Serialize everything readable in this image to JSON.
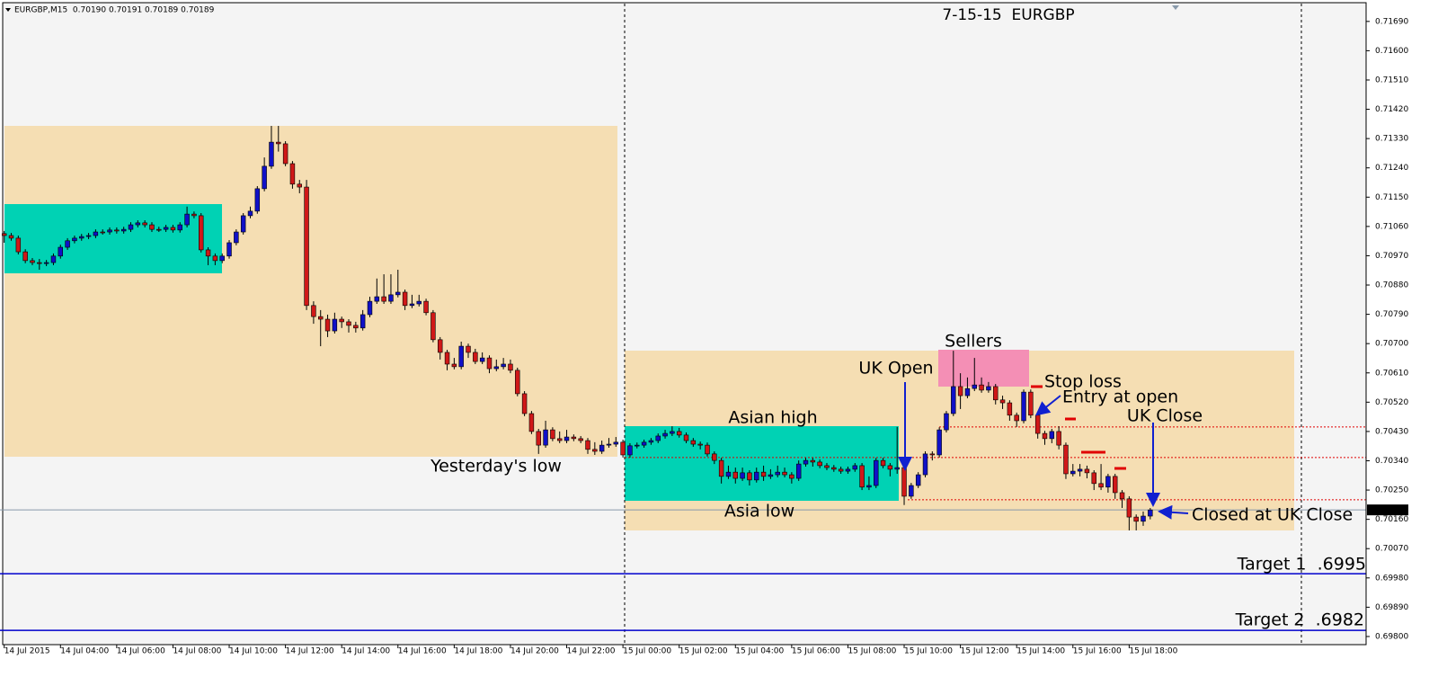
{
  "chart_data": {
    "type": "candlestick",
    "title": "7-15-15  EURGBP",
    "header": "EURGBP,M15  0.70190 0.70191 0.70189 0.70189",
    "up_color": "#1010c8",
    "down_color": "#d01818",
    "xlim": [
      -0.6,
      193.7
    ],
    "ylim": [
      0.69775,
      0.71742
    ],
    "xticks": [
      {
        "value": 0,
        "label": "14 Jul 2015"
      },
      {
        "value": 8,
        "label": "14 Jul 04:00"
      },
      {
        "value": 16,
        "label": "14 Jul 06:00"
      },
      {
        "value": 24,
        "label": "14 Jul 08:00"
      },
      {
        "value": 32,
        "label": "14 Jul 10:00"
      },
      {
        "value": 40,
        "label": "14 Jul 12:00"
      },
      {
        "value": 48,
        "label": "14 Jul 14:00"
      },
      {
        "value": 56,
        "label": "14 Jul 16:00"
      },
      {
        "value": 64,
        "label": "14 Jul 18:00"
      },
      {
        "value": 72,
        "label": "14 Jul 20:00"
      },
      {
        "value": 80,
        "label": "14 Jul 22:00"
      },
      {
        "value": 88,
        "label": "15 Jul 00:00"
      },
      {
        "value": 96,
        "label": "15 Jul 02:00"
      },
      {
        "value": 104,
        "label": "15 Jul 04:00"
      },
      {
        "value": 112,
        "label": "15 Jul 06:00"
      },
      {
        "value": 120,
        "label": "15 Jul 08:00"
      },
      {
        "value": 128,
        "label": "15 Jul 10:00"
      },
      {
        "value": 136,
        "label": "15 Jul 12:00"
      },
      {
        "value": 144,
        "label": "15 Jul 14:00"
      },
      {
        "value": 152,
        "label": "15 Jul 16:00"
      },
      {
        "value": 160,
        "label": "15 Jul 18:00"
      }
    ],
    "yticks": [
      {
        "value": 0.7169,
        "label": "0.71690"
      },
      {
        "value": 0.716,
        "label": "0.71600"
      },
      {
        "value": 0.7151,
        "label": "0.71510"
      },
      {
        "value": 0.7142,
        "label": "0.71420"
      },
      {
        "value": 0.7133,
        "label": "0.71330"
      },
      {
        "value": 0.7124,
        "label": "0.71240"
      },
      {
        "value": 0.7115,
        "label": "0.71150"
      },
      {
        "value": 0.7106,
        "label": "0.71060"
      },
      {
        "value": 0.7097,
        "label": "0.70970"
      },
      {
        "value": 0.7088,
        "label": "0.70880"
      },
      {
        "value": 0.7079,
        "label": "0.70790"
      },
      {
        "value": 0.707,
        "label": "0.70700"
      },
      {
        "value": 0.7061,
        "label": "0.70610"
      },
      {
        "value": 0.7052,
        "label": "0.70520"
      },
      {
        "value": 0.7043,
        "label": "0.70430"
      },
      {
        "value": 0.7034,
        "label": "0.70340"
      },
      {
        "value": 0.7025,
        "label": "0.70250"
      },
      {
        "value": 0.7016,
        "label": "0.70160"
      },
      {
        "value": 0.7007,
        "label": "0.70070"
      },
      {
        "value": 0.6998,
        "label": "0.69980"
      },
      {
        "value": 0.6989,
        "label": "0.69890"
      },
      {
        "value": 0.698,
        "label": "0.69800"
      }
    ],
    "last_price": {
      "value": 0.70189,
      "label": "0.70189"
    },
    "levels": [
      {
        "value": 0.69993,
        "color": "#0000cc",
        "style": "solid"
      },
      {
        "value": 0.69819,
        "color": "#0000cc",
        "style": "solid"
      },
      {
        "value": 0.70444,
        "color": "#e00000",
        "style": "dotted"
      },
      {
        "value": 0.7035,
        "color": "#e00000",
        "style": "dotted"
      },
      {
        "value": 0.7022,
        "color": "#e00000",
        "style": "dotted"
      },
      {
        "value": 0.70189,
        "color": "#8899aa",
        "style": "solid"
      }
    ],
    "annotations": [
      "Yesterday's low",
      "Asian high",
      "Asia low",
      "UK Open",
      "Sellers",
      "Stop loss",
      "Entry at open",
      "UK Close",
      "Closed at UK Close",
      "Target 1  .6995",
      "Target 2  .6982"
    ],
    "ohlc": [
      [
        0.71038,
        0.71046,
        0.7101,
        0.71032
      ],
      [
        0.71032,
        0.7104,
        0.71016,
        0.71024
      ],
      [
        0.71024,
        0.71032,
        0.70974,
        0.70982
      ],
      [
        0.70982,
        0.7099,
        0.70947,
        0.70955
      ],
      [
        0.70955,
        0.70963,
        0.70941,
        0.70949
      ],
      [
        0.70949,
        0.7096,
        0.70927,
        0.70946
      ],
      [
        0.70946,
        0.70957,
        0.70938,
        0.70949
      ],
      [
        0.70949,
        0.70977,
        0.70941,
        0.70969
      ],
      [
        0.70969,
        0.71004,
        0.70961,
        0.70996
      ],
      [
        0.70996,
        0.71024,
        0.70988,
        0.71016
      ],
      [
        0.71016,
        0.71032,
        0.71008,
        0.71024
      ],
      [
        0.71024,
        0.71037,
        0.71016,
        0.71029
      ],
      [
        0.71029,
        0.7104,
        0.71021,
        0.71032
      ],
      [
        0.71032,
        0.71051,
        0.71024,
        0.71043
      ],
      [
        0.71043,
        0.71051,
        0.71035,
        0.71043
      ],
      [
        0.71043,
        0.71057,
        0.71035,
        0.71049
      ],
      [
        0.71049,
        0.71057,
        0.71038,
        0.71046
      ],
      [
        0.71046,
        0.71059,
        0.71038,
        0.71051
      ],
      [
        0.71051,
        0.71073,
        0.71043,
        0.71065
      ],
      [
        0.71065,
        0.71079,
        0.71057,
        0.71071
      ],
      [
        0.71071,
        0.71079,
        0.71057,
        0.71065
      ],
      [
        0.71065,
        0.71073,
        0.71043,
        0.71051
      ],
      [
        0.71051,
        0.71059,
        0.71043,
        0.71051
      ],
      [
        0.71051,
        0.71065,
        0.71043,
        0.71057
      ],
      [
        0.71057,
        0.71065,
        0.71041,
        0.71049
      ],
      [
        0.71049,
        0.71073,
        0.71041,
        0.71065
      ],
      [
        0.71065,
        0.71121,
        0.71057,
        0.71098
      ],
      [
        0.71098,
        0.71106,
        0.71085,
        0.71093
      ],
      [
        0.71093,
        0.71101,
        0.7098,
        0.70988
      ],
      [
        0.70988,
        0.70996,
        0.70941,
        0.70969
      ],
      [
        0.70969,
        0.70977,
        0.70941,
        0.70955
      ],
      [
        0.70955,
        0.70977,
        0.70947,
        0.70969
      ],
      [
        0.70969,
        0.71018,
        0.70961,
        0.7101
      ],
      [
        0.7101,
        0.71051,
        0.71002,
        0.71043
      ],
      [
        0.71043,
        0.71101,
        0.71035,
        0.71093
      ],
      [
        0.71093,
        0.71121,
        0.71085,
        0.71107
      ],
      [
        0.71107,
        0.71184,
        0.71099,
        0.71176
      ],
      [
        0.71176,
        0.71272,
        0.71168,
        0.71245
      ],
      [
        0.71245,
        0.71369,
        0.71237,
        0.71319
      ],
      [
        0.71319,
        0.71369,
        0.7129,
        0.71314
      ],
      [
        0.71314,
        0.71322,
        0.71245,
        0.71253
      ],
      [
        0.71253,
        0.71261,
        0.71176,
        0.7119
      ],
      [
        0.7119,
        0.71203,
        0.71162,
        0.71181
      ],
      [
        0.71181,
        0.71203,
        0.70803,
        0.70817
      ],
      [
        0.70817,
        0.7083,
        0.70761,
        0.70783
      ],
      [
        0.70783,
        0.70803,
        0.70692,
        0.70775
      ],
      [
        0.70775,
        0.70789,
        0.7072,
        0.70739
      ],
      [
        0.70739,
        0.70795,
        0.70731,
        0.70775
      ],
      [
        0.70775,
        0.70783,
        0.70748,
        0.70767
      ],
      [
        0.70767,
        0.70775,
        0.70734,
        0.70756
      ],
      [
        0.70756,
        0.70767,
        0.70734,
        0.70748
      ],
      [
        0.70748,
        0.70803,
        0.7074,
        0.70789
      ],
      [
        0.70789,
        0.70844,
        0.70781,
        0.7083
      ],
      [
        0.7083,
        0.709,
        0.70822,
        0.70844
      ],
      [
        0.70844,
        0.70913,
        0.70822,
        0.7083
      ],
      [
        0.7083,
        0.70913,
        0.70822,
        0.7085
      ],
      [
        0.7085,
        0.70927,
        0.70842,
        0.70858
      ],
      [
        0.70858,
        0.70866,
        0.70803,
        0.70817
      ],
      [
        0.70817,
        0.7085,
        0.70809,
        0.70822
      ],
      [
        0.70822,
        0.7085,
        0.70814,
        0.7083
      ],
      [
        0.7083,
        0.70838,
        0.70787,
        0.70795
      ],
      [
        0.70795,
        0.70803,
        0.70704,
        0.70712
      ],
      [
        0.70712,
        0.7072,
        0.70651,
        0.70673
      ],
      [
        0.70673,
        0.70681,
        0.70618,
        0.70637
      ],
      [
        0.70637,
        0.70656,
        0.70621,
        0.70629
      ],
      [
        0.70629,
        0.70706,
        0.70621,
        0.70692
      ],
      [
        0.70692,
        0.707,
        0.70656,
        0.70673
      ],
      [
        0.70673,
        0.70684,
        0.70637,
        0.70645
      ],
      [
        0.70645,
        0.70673,
        0.70637,
        0.70656
      ],
      [
        0.70656,
        0.70664,
        0.70609,
        0.70623
      ],
      [
        0.70623,
        0.70651,
        0.70615,
        0.70629
      ],
      [
        0.70629,
        0.70656,
        0.70621,
        0.70637
      ],
      [
        0.70637,
        0.70651,
        0.70609,
        0.70618
      ],
      [
        0.70618,
        0.70626,
        0.70538,
        0.70546
      ],
      [
        0.70546,
        0.70554,
        0.70477,
        0.70485
      ],
      [
        0.70485,
        0.70493,
        0.70422,
        0.7043
      ],
      [
        0.7043,
        0.70438,
        0.70361,
        0.70388
      ],
      [
        0.70388,
        0.70463,
        0.7038,
        0.70435
      ],
      [
        0.70435,
        0.70443,
        0.704,
        0.70408
      ],
      [
        0.70408,
        0.7043,
        0.70394,
        0.70402
      ],
      [
        0.70402,
        0.70435,
        0.70394,
        0.70413
      ],
      [
        0.70413,
        0.70421,
        0.704,
        0.70408
      ],
      [
        0.70408,
        0.70416,
        0.70394,
        0.70402
      ],
      [
        0.70402,
        0.7041,
        0.70361,
        0.70375
      ],
      [
        0.70375,
        0.70397,
        0.70358,
        0.70369
      ],
      [
        0.70369,
        0.70402,
        0.70361,
        0.70388
      ],
      [
        0.70388,
        0.7041,
        0.7038,
        0.70391
      ],
      [
        0.70391,
        0.70413,
        0.70383,
        0.70397
      ],
      [
        0.70397,
        0.70405,
        0.7035,
        0.70358
      ],
      [
        0.70358,
        0.70394,
        0.7035,
        0.70386
      ],
      [
        0.70386,
        0.70396,
        0.70378,
        0.70388
      ],
      [
        0.70388,
        0.70405,
        0.7038,
        0.70397
      ],
      [
        0.70397,
        0.7041,
        0.70389,
        0.70402
      ],
      [
        0.70402,
        0.70424,
        0.70394,
        0.70416
      ],
      [
        0.70416,
        0.70435,
        0.70408,
        0.70424
      ],
      [
        0.70424,
        0.70446,
        0.70416,
        0.7043
      ],
      [
        0.7043,
        0.70441,
        0.70411,
        0.70419
      ],
      [
        0.70419,
        0.70427,
        0.70394,
        0.70402
      ],
      [
        0.70402,
        0.7041,
        0.70383,
        0.70391
      ],
      [
        0.70391,
        0.70399,
        0.70375,
        0.70388
      ],
      [
        0.70388,
        0.70396,
        0.70353,
        0.70361
      ],
      [
        0.70361,
        0.70369,
        0.7033,
        0.70341
      ],
      [
        0.70341,
        0.70349,
        0.7027,
        0.70292
      ],
      [
        0.70292,
        0.70325,
        0.70284,
        0.70305
      ],
      [
        0.70305,
        0.70319,
        0.7027,
        0.70286
      ],
      [
        0.70286,
        0.70319,
        0.70278,
        0.70303
      ],
      [
        0.70303,
        0.70311,
        0.70264,
        0.70281
      ],
      [
        0.70281,
        0.70319,
        0.70273,
        0.70305
      ],
      [
        0.70305,
        0.70325,
        0.70278,
        0.70292
      ],
      [
        0.70292,
        0.70314,
        0.70284,
        0.70297
      ],
      [
        0.70297,
        0.70325,
        0.70289,
        0.70305
      ],
      [
        0.70305,
        0.70319,
        0.70289,
        0.70297
      ],
      [
        0.70297,
        0.70305,
        0.7027,
        0.70286
      ],
      [
        0.70286,
        0.70341,
        0.70278,
        0.7033
      ],
      [
        0.7033,
        0.70349,
        0.70322,
        0.70341
      ],
      [
        0.70341,
        0.70349,
        0.70322,
        0.70336
      ],
      [
        0.70336,
        0.70344,
        0.70317,
        0.70325
      ],
      [
        0.70325,
        0.70333,
        0.70311,
        0.70319
      ],
      [
        0.70319,
        0.70327,
        0.70306,
        0.70314
      ],
      [
        0.70314,
        0.70322,
        0.703,
        0.70308
      ],
      [
        0.70308,
        0.70322,
        0.703,
        0.70314
      ],
      [
        0.70314,
        0.70333,
        0.70306,
        0.70325
      ],
      [
        0.70325,
        0.70333,
        0.7025,
        0.70259
      ],
      [
        0.70259,
        0.70292,
        0.7025,
        0.70264
      ],
      [
        0.70264,
        0.70349,
        0.70256,
        0.70341
      ],
      [
        0.70341,
        0.70349,
        0.70317,
        0.70325
      ],
      [
        0.70325,
        0.70333,
        0.70292,
        0.70314
      ],
      [
        0.70314,
        0.70444,
        0.703,
        0.70319
      ],
      [
        0.70319,
        0.70327,
        0.70204,
        0.70231
      ],
      [
        0.70231,
        0.70272,
        0.70223,
        0.70264
      ],
      [
        0.70264,
        0.70305,
        0.70256,
        0.70297
      ],
      [
        0.70297,
        0.70369,
        0.70289,
        0.70361
      ],
      [
        0.70361,
        0.70369,
        0.70341,
        0.70358
      ],
      [
        0.70358,
        0.70443,
        0.7035,
        0.70435
      ],
      [
        0.70435,
        0.70493,
        0.70427,
        0.70485
      ],
      [
        0.70485,
        0.70678,
        0.70477,
        0.70568
      ],
      [
        0.70568,
        0.70609,
        0.70499,
        0.7054
      ],
      [
        0.7054,
        0.70596,
        0.70532,
        0.70562
      ],
      [
        0.70562,
        0.70656,
        0.70554,
        0.70573
      ],
      [
        0.70573,
        0.70596,
        0.70549,
        0.70557
      ],
      [
        0.70557,
        0.70582,
        0.70549,
        0.70568
      ],
      [
        0.70568,
        0.70576,
        0.70513,
        0.70527
      ],
      [
        0.70527,
        0.7054,
        0.70499,
        0.70518
      ],
      [
        0.70518,
        0.70526,
        0.70463,
        0.7048
      ],
      [
        0.7048,
        0.70488,
        0.70444,
        0.70463
      ],
      [
        0.70463,
        0.70559,
        0.70455,
        0.70551
      ],
      [
        0.70551,
        0.70559,
        0.70471,
        0.7048
      ],
      [
        0.7048,
        0.70488,
        0.70408,
        0.70424
      ],
      [
        0.70424,
        0.70432,
        0.70389,
        0.70408
      ],
      [
        0.70408,
        0.70438,
        0.70394,
        0.7043
      ],
      [
        0.7043,
        0.70446,
        0.70375,
        0.70388
      ],
      [
        0.70388,
        0.70396,
        0.70284,
        0.703
      ],
      [
        0.703,
        0.7033,
        0.70292,
        0.70308
      ],
      [
        0.70308,
        0.7033,
        0.70292,
        0.70314
      ],
      [
        0.70314,
        0.70325,
        0.70286,
        0.70303
      ],
      [
        0.70303,
        0.70311,
        0.7025,
        0.7027
      ],
      [
        0.7027,
        0.7033,
        0.7025,
        0.70259
      ],
      [
        0.70259,
        0.703,
        0.70242,
        0.70292
      ],
      [
        0.70292,
        0.703,
        0.70223,
        0.70242
      ],
      [
        0.70242,
        0.7025,
        0.70195,
        0.70223
      ],
      [
        0.70223,
        0.70231,
        0.70126,
        0.70167
      ],
      [
        0.70167,
        0.70175,
        0.70126,
        0.70154
      ],
      [
        0.70154,
        0.70184,
        0.7014,
        0.7017
      ],
      [
        0.7017,
        0.70195,
        0.7016,
        0.70189
      ]
    ]
  }
}
